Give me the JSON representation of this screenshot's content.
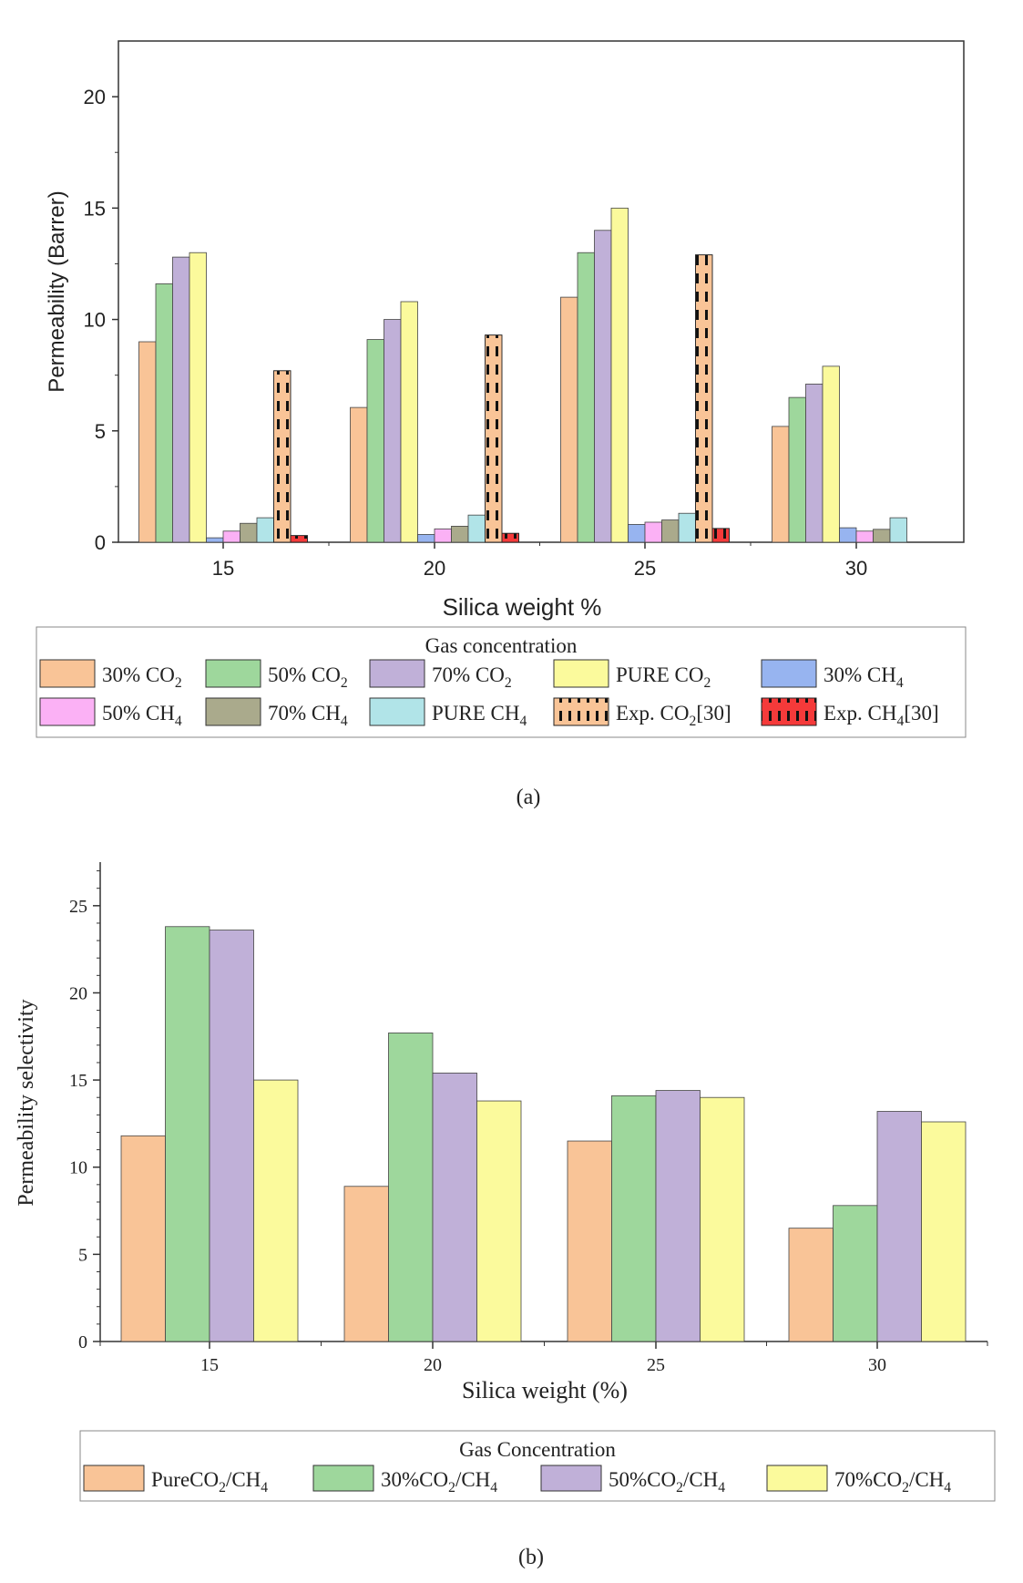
{
  "colors": {
    "co2_30": "#f9c497",
    "co2_50": "#9ed79c",
    "co2_70": "#c0b0d8",
    "co2_pure": "#fbfa9c",
    "ch4_30": "#97b4f0",
    "ch4_50": "#fbb1f5",
    "ch4_70": "#aaaa8c",
    "ch4_pure": "#b1e4e8",
    "exp_co2": "#f9c497",
    "exp_ch4": "#f53a3a"
  },
  "chart_data": [
    {
      "id": "a",
      "type": "bar",
      "panel_label": "(a)",
      "title": "",
      "xlabel": "Silica weight %",
      "ylabel": "Permeability (Barrer)",
      "categories": [
        "15",
        "20",
        "25",
        "30"
      ],
      "ylim": [
        0,
        22.5
      ],
      "yticks": [
        0,
        5,
        10,
        15,
        20
      ],
      "legend_title": "Gas concentration",
      "series": [
        {
          "name": "30% CO2",
          "label_main": "30% CO",
          "label_sub": "2",
          "label_after": "",
          "color_key": "co2_30",
          "pattern": "none",
          "values": [
            9.0,
            6.05,
            11.0,
            5.2
          ]
        },
        {
          "name": "50% CO2",
          "label_main": "50% CO",
          "label_sub": "2",
          "label_after": "",
          "color_key": "co2_50",
          "pattern": "none",
          "values": [
            11.6,
            9.1,
            13.0,
            6.5
          ]
        },
        {
          "name": "70% CO2",
          "label_main": "70% CO",
          "label_sub": "2",
          "label_after": "",
          "color_key": "co2_70",
          "pattern": "none",
          "values": [
            12.8,
            10.0,
            14.0,
            7.1
          ]
        },
        {
          "name": "PURE CO2",
          "label_main": "PURE CO",
          "label_sub": "2",
          "label_after": "",
          "color_key": "co2_pure",
          "pattern": "none",
          "values": [
            13.0,
            10.8,
            15.0,
            7.9
          ]
        },
        {
          "name": "30% CH4",
          "label_main": "30% CH",
          "label_sub": "4",
          "label_after": "",
          "color_key": "ch4_30",
          "pattern": "none",
          "values": [
            0.2,
            0.35,
            0.8,
            0.65
          ]
        },
        {
          "name": "50% CH4",
          "label_main": "50% CH",
          "label_sub": "4",
          "label_after": "",
          "color_key": "ch4_50",
          "pattern": "none",
          "values": [
            0.5,
            0.6,
            0.9,
            0.5
          ]
        },
        {
          "name": "70% CH4",
          "label_main": "70% CH",
          "label_sub": "4",
          "label_after": "",
          "color_key": "ch4_70",
          "pattern": "none",
          "values": [
            0.85,
            0.72,
            1.0,
            0.58
          ]
        },
        {
          "name": "PURE CH4",
          "label_main": "PURE CH",
          "label_sub": "4",
          "label_after": "",
          "color_key": "ch4_pure",
          "pattern": "none",
          "values": [
            1.1,
            1.22,
            1.3,
            1.1
          ]
        },
        {
          "name": "Exp. CO2[30]",
          "label_main": "Exp. CO",
          "label_sub": "2",
          "label_after": "[30]",
          "color_key": "exp_co2",
          "pattern": "dashed",
          "values": [
            7.7,
            9.3,
            12.9,
            null
          ]
        },
        {
          "name": "Exp. CH4[30]",
          "label_main": "Exp. CH",
          "label_sub": "4",
          "label_after": "[30]",
          "color_key": "exp_ch4",
          "pattern": "dashed",
          "values": [
            0.3,
            0.4,
            0.62,
            null
          ]
        }
      ]
    },
    {
      "id": "b",
      "type": "bar",
      "panel_label": "(b)",
      "title": "",
      "xlabel": "Silica weight (%)",
      "ylabel": "Permeability selectivity",
      "categories": [
        "15",
        "20",
        "25",
        "30"
      ],
      "ylim": [
        0,
        27.5
      ],
      "yticks": [
        0,
        5,
        10,
        15,
        20,
        25
      ],
      "legend_title": "Gas Concentration",
      "series": [
        {
          "name": "PureCO2/CH4",
          "label_main": "PureCO",
          "label_sub": "2",
          "label_after": "/CH",
          "label_sub2": "4",
          "color_key": "co2_30",
          "values": [
            11.8,
            8.9,
            11.5,
            6.5
          ]
        },
        {
          "name": "30%CO2/CH4",
          "label_main": "30%CO",
          "label_sub": "2",
          "label_after": "/CH",
          "label_sub2": "4",
          "color_key": "co2_50",
          "values": [
            23.8,
            17.7,
            14.1,
            7.8
          ]
        },
        {
          "name": "50%CO2/CH4",
          "label_main": "50%CO",
          "label_sub": "2",
          "label_after": "/CH",
          "label_sub2": "4",
          "color_key": "co2_70",
          "values": [
            23.6,
            15.4,
            14.4,
            13.2
          ]
        },
        {
          "name": "70%CO2/CH4",
          "label_main": "70%CO",
          "label_sub": "2",
          "label_after": "/CH",
          "label_sub2": "4",
          "color_key": "co2_pure",
          "values": [
            15.0,
            13.8,
            14.0,
            12.6
          ]
        }
      ]
    }
  ]
}
